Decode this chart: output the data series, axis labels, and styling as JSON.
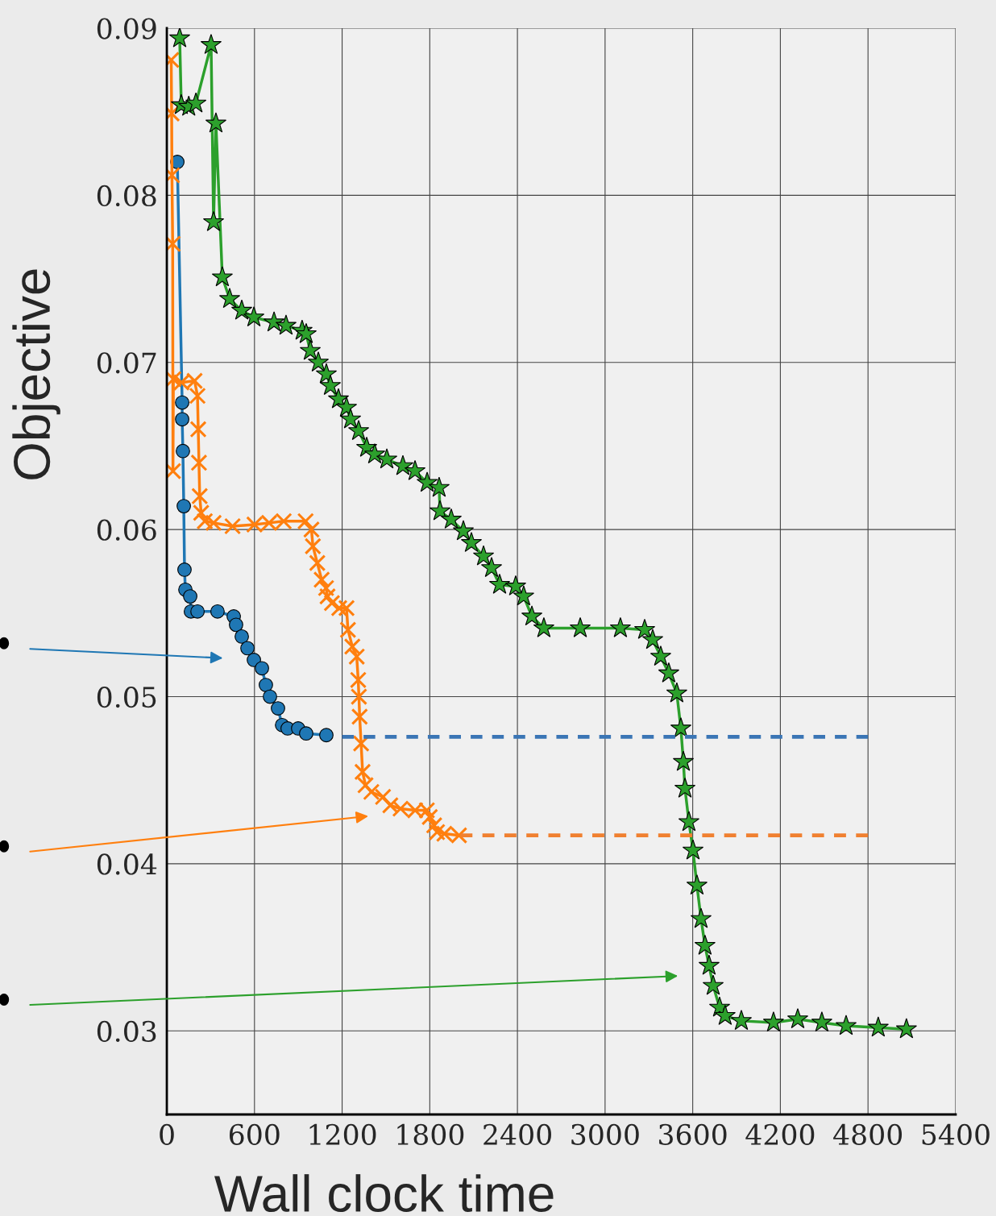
{
  "chart_data": {
    "type": "line",
    "xlabel": "Wall clock time",
    "ylabel": "Objective",
    "xlim": [
      0,
      5400
    ],
    "xticks": [
      0,
      600,
      1200,
      1800,
      2400,
      3000,
      3600,
      4200,
      4800,
      5400
    ],
    "ylim": [
      0.025,
      0.09
    ],
    "yticks": [
      0.03,
      0.04,
      0.05,
      0.06,
      0.07,
      0.08,
      0.09
    ],
    "grid": true,
    "series": [
      {
        "color": "#1f77b4",
        "marker": "circle",
        "line_style": "solid",
        "x": [
          72,
          105,
          105,
          110,
          116,
          121,
          127,
          160,
          165,
          210,
          347,
          458,
          474,
          513,
          552,
          596,
          651,
          678,
          706,
          761,
          789,
          827,
          899,
          954,
          1092
        ],
        "values": [
          0.082,
          0.0676,
          0.0666,
          0.0647,
          0.0614,
          0.0576,
          0.0564,
          0.056,
          0.0551,
          0.0551,
          0.0551,
          0.0548,
          0.0543,
          0.0536,
          0.0529,
          0.0522,
          0.0517,
          0.0507,
          0.05,
          0.0493,
          0.0483,
          0.0481,
          0.0481,
          0.0478,
          0.0477
        ]
      },
      {
        "color": "#ff7f0e",
        "marker": "cross",
        "line_style": "solid",
        "x": [
          30,
          33,
          35,
          40,
          42,
          45,
          100,
          190,
          210,
          215,
          220,
          225,
          235,
          260,
          320,
          450,
          600,
          700,
          800,
          950,
          990,
          1000,
          1030,
          1060,
          1090,
          1100,
          1130,
          1180,
          1230,
          1240,
          1270,
          1300,
          1310,
          1315,
          1320,
          1330,
          1340,
          1360,
          1400,
          1480,
          1530,
          1600,
          1700,
          1780,
          1800,
          1830,
          1850,
          1900,
          2000
        ],
        "values": [
          0.0881,
          0.0849,
          0.0812,
          0.0771,
          0.0635,
          0.069,
          0.0688,
          0.0689,
          0.068,
          0.066,
          0.064,
          0.062,
          0.061,
          0.0605,
          0.0604,
          0.0602,
          0.0603,
          0.0604,
          0.0605,
          0.0605,
          0.06,
          0.059,
          0.058,
          0.057,
          0.0565,
          0.056,
          0.0556,
          0.0553,
          0.0553,
          0.054,
          0.053,
          0.0524,
          0.051,
          0.05,
          0.0488,
          0.0472,
          0.0455,
          0.0447,
          0.0443,
          0.044,
          0.0435,
          0.0433,
          0.0432,
          0.0432,
          0.0428,
          0.0423,
          0.0419,
          0.0418,
          0.0417
        ]
      },
      {
        "color": "#2ca02c",
        "marker": "star",
        "line_style": "solid",
        "x": [
          88,
          99,
          150,
          199,
          303,
          320,
          336,
          380,
          430,
          513,
          596,
          734,
          816,
          926,
          954,
          982,
          1037,
          1092,
          1120,
          1175,
          1230,
          1258,
          1313,
          1368,
          1423,
          1506,
          1616,
          1699,
          1782,
          1864,
          1870,
          1947,
          2030,
          2085,
          2168,
          2223,
          2278,
          2388,
          2443,
          2499,
          2581,
          2830,
          3105,
          3271,
          3326,
          3381,
          3436,
          3491,
          3519,
          3536,
          3547,
          3574,
          3602,
          3629,
          3657,
          3684,
          3712,
          3740,
          3784,
          3822,
          3933,
          4153,
          4319,
          4484,
          4650,
          4870,
          5063
        ],
        "values": [
          0.0894,
          0.0854,
          0.0853,
          0.0855,
          0.089,
          0.0784,
          0.0843,
          0.0751,
          0.0738,
          0.0731,
          0.0727,
          0.0724,
          0.0722,
          0.0719,
          0.0717,
          0.0707,
          0.07,
          0.0693,
          0.0686,
          0.0678,
          0.0673,
          0.0666,
          0.0659,
          0.0649,
          0.0645,
          0.0642,
          0.0638,
          0.0635,
          0.0628,
          0.0625,
          0.0611,
          0.0606,
          0.0599,
          0.0592,
          0.0584,
          0.0577,
          0.0567,
          0.0566,
          0.056,
          0.0548,
          0.0541,
          0.0541,
          0.0541,
          0.054,
          0.0534,
          0.0524,
          0.0514,
          0.0502,
          0.0481,
          0.0461,
          0.0445,
          0.0425,
          0.0408,
          0.0387,
          0.0367,
          0.0351,
          0.0339,
          0.0327,
          0.0314,
          0.0309,
          0.0306,
          0.0305,
          0.0307,
          0.0305,
          0.0303,
          0.0302,
          0.0301
        ]
      },
      {
        "color": "#3a75b5",
        "marker": "none",
        "line_style": "dashed",
        "x": [
          1200,
          4800
        ],
        "values": [
          0.0476,
          0.0476
        ]
      },
      {
        "color": "#f08030",
        "marker": "none",
        "line_style": "dashed",
        "x": [
          2010,
          4800
        ],
        "values": [
          0.0417,
          0.0417
        ]
      }
    ]
  }
}
